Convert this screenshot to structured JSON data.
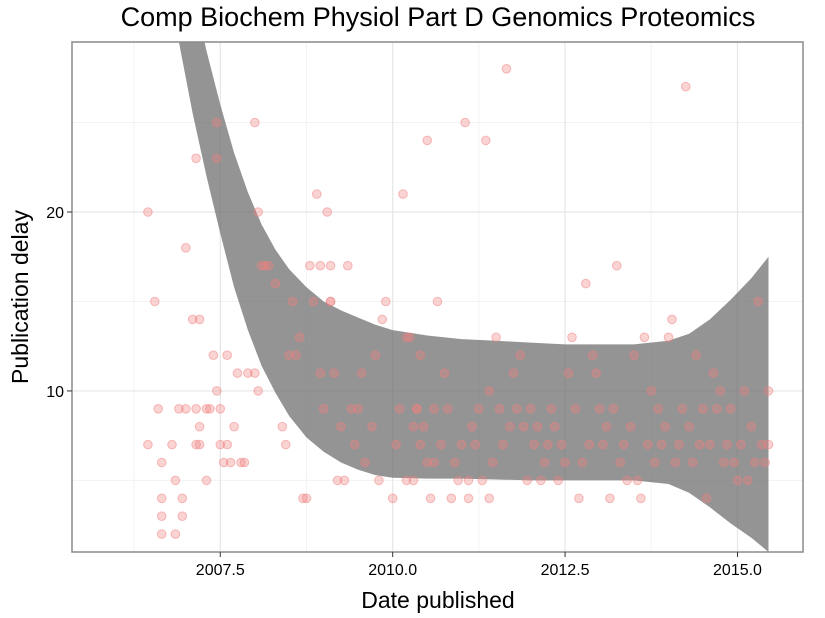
{
  "chart_data": {
    "type": "scatter",
    "title": "Comp Biochem Physiol Part D Genomics Proteomics",
    "xlabel": "Date published",
    "ylabel": "Publication delay",
    "xlim": [
      2005.35,
      2015.95
    ],
    "ylim": [
      1,
      29.5
    ],
    "x_ticks": [
      2007.5,
      2010.0,
      2012.5,
      2015.0
    ],
    "x_tick_labels": [
      "2007.5",
      "2010.0",
      "2012.5",
      "2015.0"
    ],
    "y_ticks": [
      10,
      20
    ],
    "y_tick_labels": [
      "10",
      "20"
    ],
    "grid": true,
    "legend": "none",
    "point_color": "#f08080",
    "band_color": "#666666",
    "points": [
      [
        2006.45,
        20
      ],
      [
        2006.45,
        7
      ],
      [
        2006.55,
        15
      ],
      [
        2006.6,
        9
      ],
      [
        2006.65,
        6
      ],
      [
        2006.65,
        4
      ],
      [
        2006.65,
        3
      ],
      [
        2006.65,
        2
      ],
      [
        2006.8,
        7
      ],
      [
        2006.85,
        5
      ],
      [
        2006.85,
        2
      ],
      [
        2006.9,
        9
      ],
      [
        2006.95,
        4
      ],
      [
        2006.95,
        3
      ],
      [
        2007.0,
        18
      ],
      [
        2007.0,
        9
      ],
      [
        2007.1,
        14
      ],
      [
        2007.15,
        23
      ],
      [
        2007.15,
        7
      ],
      [
        2007.15,
        9
      ],
      [
        2007.2,
        14
      ],
      [
        2007.2,
        8
      ],
      [
        2007.2,
        7
      ],
      [
        2007.3,
        9
      ],
      [
        2007.3,
        5
      ],
      [
        2007.35,
        9
      ],
      [
        2007.4,
        12
      ],
      [
        2007.45,
        10
      ],
      [
        2007.45,
        25
      ],
      [
        2007.45,
        23
      ],
      [
        2007.5,
        9
      ],
      [
        2007.5,
        7
      ],
      [
        2007.55,
        6
      ],
      [
        2007.6,
        12
      ],
      [
        2007.6,
        7
      ],
      [
        2007.65,
        6
      ],
      [
        2007.7,
        8
      ],
      [
        2007.75,
        11
      ],
      [
        2007.8,
        6
      ],
      [
        2007.85,
        6
      ],
      [
        2007.9,
        11
      ],
      [
        2008.0,
        25
      ],
      [
        2008.0,
        11
      ],
      [
        2008.05,
        20
      ],
      [
        2008.05,
        10
      ],
      [
        2008.1,
        17
      ],
      [
        2008.15,
        17
      ],
      [
        2008.2,
        17
      ],
      [
        2008.3,
        16
      ],
      [
        2008.4,
        8
      ],
      [
        2008.45,
        7
      ],
      [
        2008.5,
        12
      ],
      [
        2008.55,
        15
      ],
      [
        2008.6,
        12
      ],
      [
        2008.65,
        13
      ],
      [
        2008.7,
        4
      ],
      [
        2008.75,
        4
      ],
      [
        2008.8,
        17
      ],
      [
        2008.85,
        15
      ],
      [
        2008.9,
        21
      ],
      [
        2008.95,
        11
      ],
      [
        2008.95,
        17
      ],
      [
        2009.0,
        9
      ],
      [
        2009.05,
        20
      ],
      [
        2009.1,
        15
      ],
      [
        2009.1,
        15
      ],
      [
        2009.1,
        17
      ],
      [
        2009.15,
        11
      ],
      [
        2009.2,
        5
      ],
      [
        2009.25,
        8
      ],
      [
        2009.3,
        5
      ],
      [
        2009.35,
        17
      ],
      [
        2009.4,
        9
      ],
      [
        2009.45,
        7
      ],
      [
        2009.5,
        9
      ],
      [
        2009.55,
        11
      ],
      [
        2009.6,
        6
      ],
      [
        2009.7,
        8
      ],
      [
        2009.75,
        12
      ],
      [
        2009.8,
        5
      ],
      [
        2009.85,
        14
      ],
      [
        2009.9,
        15
      ],
      [
        2010.0,
        4
      ],
      [
        2010.05,
        7
      ],
      [
        2010.1,
        9
      ],
      [
        2010.15,
        21
      ],
      [
        2010.2,
        5
      ],
      [
        2010.2,
        13
      ],
      [
        2010.25,
        13
      ],
      [
        2010.3,
        5
      ],
      [
        2010.3,
        8
      ],
      [
        2010.35,
        9
      ],
      [
        2010.35,
        9
      ],
      [
        2010.4,
        12
      ],
      [
        2010.4,
        7
      ],
      [
        2010.45,
        8
      ],
      [
        2010.5,
        24
      ],
      [
        2010.5,
        6
      ],
      [
        2010.55,
        4
      ],
      [
        2010.6,
        9
      ],
      [
        2010.6,
        6
      ],
      [
        2010.65,
        15
      ],
      [
        2010.7,
        7
      ],
      [
        2010.75,
        11
      ],
      [
        2010.8,
        9
      ],
      [
        2010.85,
        4
      ],
      [
        2010.9,
        6
      ],
      [
        2010.95,
        5
      ],
      [
        2011.0,
        7
      ],
      [
        2011.05,
        25
      ],
      [
        2011.1,
        4
      ],
      [
        2011.1,
        5
      ],
      [
        2011.15,
        8
      ],
      [
        2011.2,
        7
      ],
      [
        2011.25,
        9
      ],
      [
        2011.3,
        5
      ],
      [
        2011.35,
        24
      ],
      [
        2011.4,
        4
      ],
      [
        2011.4,
        10
      ],
      [
        2011.45,
        6
      ],
      [
        2011.5,
        13
      ],
      [
        2011.55,
        9
      ],
      [
        2011.6,
        7
      ],
      [
        2011.65,
        28
      ],
      [
        2011.7,
        8
      ],
      [
        2011.75,
        11
      ],
      [
        2011.8,
        9
      ],
      [
        2011.85,
        12
      ],
      [
        2011.9,
        8
      ],
      [
        2011.95,
        5
      ],
      [
        2012.0,
        9
      ],
      [
        2012.05,
        7
      ],
      [
        2012.1,
        8
      ],
      [
        2012.15,
        5
      ],
      [
        2012.2,
        6
      ],
      [
        2012.25,
        7
      ],
      [
        2012.3,
        9
      ],
      [
        2012.35,
        8
      ],
      [
        2012.4,
        5
      ],
      [
        2012.45,
        7
      ],
      [
        2012.5,
        6
      ],
      [
        2012.55,
        11
      ],
      [
        2012.6,
        13
      ],
      [
        2012.65,
        9
      ],
      [
        2012.7,
        4
      ],
      [
        2012.75,
        6
      ],
      [
        2012.8,
        16
      ],
      [
        2012.85,
        7
      ],
      [
        2012.9,
        12
      ],
      [
        2012.95,
        11
      ],
      [
        2013.0,
        9
      ],
      [
        2013.05,
        7
      ],
      [
        2013.1,
        8
      ],
      [
        2013.15,
        4
      ],
      [
        2013.2,
        9
      ],
      [
        2013.25,
        17
      ],
      [
        2013.3,
        6
      ],
      [
        2013.35,
        7
      ],
      [
        2013.4,
        5
      ],
      [
        2013.45,
        8
      ],
      [
        2013.5,
        12
      ],
      [
        2013.55,
        5
      ],
      [
        2013.6,
        4
      ],
      [
        2013.65,
        13
      ],
      [
        2013.7,
        7
      ],
      [
        2013.75,
        10
      ],
      [
        2013.8,
        6
      ],
      [
        2013.85,
        9
      ],
      [
        2013.9,
        7
      ],
      [
        2013.95,
        8
      ],
      [
        2014.0,
        13
      ],
      [
        2014.05,
        14
      ],
      [
        2014.1,
        6
      ],
      [
        2014.15,
        7
      ],
      [
        2014.2,
        9
      ],
      [
        2014.25,
        27
      ],
      [
        2014.3,
        8
      ],
      [
        2014.35,
        6
      ],
      [
        2014.4,
        12
      ],
      [
        2014.45,
        7
      ],
      [
        2014.5,
        9
      ],
      [
        2014.55,
        4
      ],
      [
        2014.6,
        7
      ],
      [
        2014.65,
        11
      ],
      [
        2014.7,
        9
      ],
      [
        2014.75,
        10
      ],
      [
        2014.8,
        6
      ],
      [
        2014.85,
        7
      ],
      [
        2014.9,
        9
      ],
      [
        2014.95,
        6
      ],
      [
        2015.0,
        5
      ],
      [
        2015.05,
        7
      ],
      [
        2015.1,
        10
      ],
      [
        2015.15,
        5
      ],
      [
        2015.2,
        8
      ],
      [
        2015.25,
        6
      ],
      [
        2015.3,
        15
      ],
      [
        2015.35,
        7
      ],
      [
        2015.4,
        6
      ],
      [
        2015.45,
        10
      ],
      [
        2015.45,
        7
      ]
    ],
    "confidence_band": {
      "upper": [
        [
          2006.9,
          36
        ],
        [
          2007.1,
          32.5
        ],
        [
          2007.3,
          29
        ],
        [
          2007.5,
          26
        ],
        [
          2007.7,
          23.3
        ],
        [
          2007.9,
          21.1
        ],
        [
          2008.1,
          19.3
        ],
        [
          2008.3,
          17.9
        ],
        [
          2008.5,
          16.8
        ],
        [
          2008.75,
          15.8
        ],
        [
          2009.0,
          15.0
        ],
        [
          2009.25,
          14.5
        ],
        [
          2009.5,
          14.1
        ],
        [
          2009.75,
          13.7
        ],
        [
          2010.0,
          13.4
        ],
        [
          2010.5,
          13.1
        ],
        [
          2011.0,
          12.9
        ],
        [
          2011.5,
          12.8
        ],
        [
          2012.0,
          12.7
        ],
        [
          2012.5,
          12.6
        ],
        [
          2013.0,
          12.6
        ],
        [
          2013.5,
          12.6
        ],
        [
          2014.0,
          12.8
        ],
        [
          2014.3,
          13.2
        ],
        [
          2014.6,
          14.0
        ],
        [
          2014.9,
          15.1
        ],
        [
          2015.2,
          16.3
        ],
        [
          2015.45,
          17.5
        ]
      ],
      "lower": [
        [
          2006.9,
          29.5
        ],
        [
          2007.1,
          25.5
        ],
        [
          2007.3,
          22
        ],
        [
          2007.5,
          18.8
        ],
        [
          2007.7,
          15.8
        ],
        [
          2007.9,
          13.4
        ],
        [
          2008.1,
          11.4
        ],
        [
          2008.3,
          9.9
        ],
        [
          2008.5,
          8.6
        ],
        [
          2008.75,
          7.4
        ],
        [
          2009.0,
          6.6
        ],
        [
          2009.25,
          6.0
        ],
        [
          2009.5,
          5.6
        ],
        [
          2009.75,
          5.3
        ],
        [
          2010.0,
          5.15
        ],
        [
          2010.5,
          5.1
        ],
        [
          2011.0,
          5.1
        ],
        [
          2011.5,
          5.05
        ],
        [
          2012.0,
          5.0
        ],
        [
          2012.5,
          5.0
        ],
        [
          2013.0,
          5.0
        ],
        [
          2013.5,
          5.0
        ],
        [
          2014.0,
          4.8
        ],
        [
          2014.3,
          4.3
        ],
        [
          2014.6,
          3.5
        ],
        [
          2014.9,
          2.6
        ],
        [
          2015.2,
          1.8
        ],
        [
          2015.45,
          1.0
        ]
      ]
    }
  }
}
